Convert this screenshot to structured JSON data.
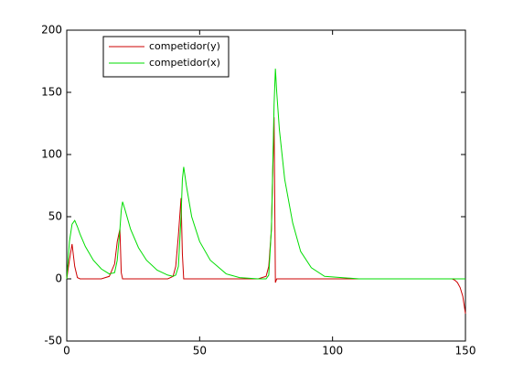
{
  "chart_data": {
    "type": "line",
    "x": [
      0,
      1,
      2,
      3,
      4,
      5,
      7,
      10,
      13,
      16,
      18,
      19,
      20,
      20.5,
      21,
      22,
      24,
      27,
      30,
      34,
      38,
      40,
      41,
      42,
      43,
      43.5,
      44,
      45,
      47,
      50,
      54,
      60,
      65,
      72,
      75,
      76,
      77,
      78,
      78.5,
      79,
      80,
      82,
      85,
      88,
      92,
      97,
      110,
      130,
      145,
      146,
      147,
      148,
      149,
      150
    ],
    "series": [
      {
        "name": "competidor(y)",
        "color": "#cc0000",
        "values": [
          0,
          15,
          28,
          10,
          1,
          0,
          0,
          0,
          0,
          2,
          12,
          30,
          40,
          5,
          0,
          0,
          0,
          0,
          0,
          0,
          0,
          2,
          10,
          35,
          65,
          20,
          0,
          0,
          0,
          0,
          0,
          0,
          0,
          0,
          2,
          10,
          40,
          130,
          -3,
          0,
          0,
          0,
          0,
          0,
          0,
          0,
          0,
          0,
          0,
          -1,
          -3,
          -7,
          -14,
          -28
        ]
      },
      {
        "name": "competidor(x)",
        "color": "#00dd00",
        "values": [
          0,
          30,
          44,
          47,
          42,
          36,
          26,
          15,
          8,
          4,
          5,
          15,
          40,
          55,
          62,
          55,
          40,
          25,
          15,
          7,
          3,
          2,
          3,
          10,
          50,
          80,
          90,
          75,
          50,
          30,
          15,
          4,
          1,
          0,
          0,
          3,
          40,
          140,
          169,
          150,
          120,
          80,
          45,
          22,
          9,
          2,
          0,
          0,
          0,
          0,
          0,
          0,
          0,
          0
        ]
      }
    ],
    "xlim": [
      0,
      150
    ],
    "xticks": [
      0,
      50,
      100,
      150
    ],
    "ylim": [
      -50,
      200
    ],
    "yticks": [
      -50,
      0,
      50,
      100,
      150,
      200
    ],
    "legend": "upper left"
  }
}
